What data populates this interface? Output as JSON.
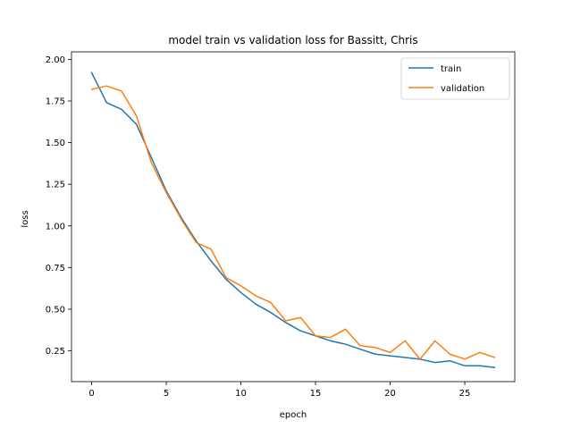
{
  "chart_data": {
    "type": "line",
    "title": "model train vs validation loss for Bassitt, Chris",
    "xlabel": "epoch",
    "ylabel": "loss",
    "xlim": [
      -1.35,
      28.35
    ],
    "ylim": [
      0.065,
      2.045
    ],
    "x_ticks": [
      0,
      5,
      10,
      15,
      20,
      25
    ],
    "x_tick_labels": [
      "0",
      "5",
      "10",
      "15",
      "20",
      "25"
    ],
    "y_ticks": [
      0.25,
      0.5,
      0.75,
      1.0,
      1.25,
      1.5,
      1.75,
      2.0
    ],
    "y_tick_labels": [
      "0.25",
      "0.50",
      "0.75",
      "1.00",
      "1.25",
      "1.50",
      "1.75",
      "2.00"
    ],
    "grid": false,
    "legend_position": "upper right",
    "x": [
      0,
      1,
      2,
      3,
      4,
      5,
      6,
      7,
      8,
      9,
      10,
      11,
      12,
      13,
      14,
      15,
      16,
      17,
      18,
      19,
      20,
      21,
      22,
      23,
      24,
      25,
      26,
      27
    ],
    "series": [
      {
        "name": "train",
        "color": "#1f77b4",
        "values": [
          1.92,
          1.74,
          1.7,
          1.61,
          1.41,
          1.21,
          1.05,
          0.91,
          0.79,
          0.68,
          0.6,
          0.53,
          0.48,
          0.42,
          0.37,
          0.34,
          0.31,
          0.29,
          0.26,
          0.23,
          0.22,
          0.21,
          0.2,
          0.18,
          0.19,
          0.16,
          0.16,
          0.15
        ]
      },
      {
        "name": "validation",
        "color": "#ff7f0e",
        "values": [
          1.82,
          1.84,
          1.81,
          1.66,
          1.38,
          1.2,
          1.04,
          0.9,
          0.86,
          0.69,
          0.64,
          0.58,
          0.54,
          0.43,
          0.45,
          0.34,
          0.33,
          0.38,
          0.28,
          0.27,
          0.24,
          0.31,
          0.2,
          0.31,
          0.23,
          0.2,
          0.24,
          0.21
        ]
      }
    ]
  }
}
